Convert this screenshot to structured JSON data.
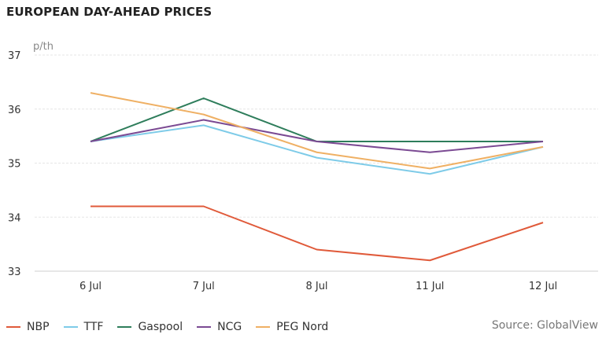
{
  "chart_data": {
    "type": "line",
    "title": "EUROPEAN DAY-AHEAD PRICES",
    "ylabel": "p/th",
    "categories": [
      "6 Jul",
      "7 Jul",
      "8 Jul",
      "11 Jul",
      "12 Jul"
    ],
    "ylim": [
      33,
      37
    ],
    "yticks": [
      33,
      34,
      35,
      36,
      37
    ],
    "grid": true,
    "legend_position": "bottom-left",
    "source": "Source: GlobalView",
    "series": [
      {
        "name": "NBP",
        "color": "#e05a3a",
        "values": [
          34.2,
          34.2,
          33.4,
          33.2,
          33.9
        ]
      },
      {
        "name": "TTF",
        "color": "#7ecbe8",
        "values": [
          35.4,
          35.7,
          35.1,
          34.8,
          35.3
        ]
      },
      {
        "name": "Gaspool",
        "color": "#2e7d5b",
        "values": [
          35.4,
          36.2,
          35.4,
          35.4,
          35.4
        ]
      },
      {
        "name": "NCG",
        "color": "#7b4a93",
        "values": [
          35.4,
          35.8,
          35.4,
          35.2,
          35.4
        ]
      },
      {
        "name": "PEG Nord",
        "color": "#efb064",
        "values": [
          36.3,
          35.9,
          35.2,
          34.9,
          35.3
        ]
      }
    ]
  }
}
